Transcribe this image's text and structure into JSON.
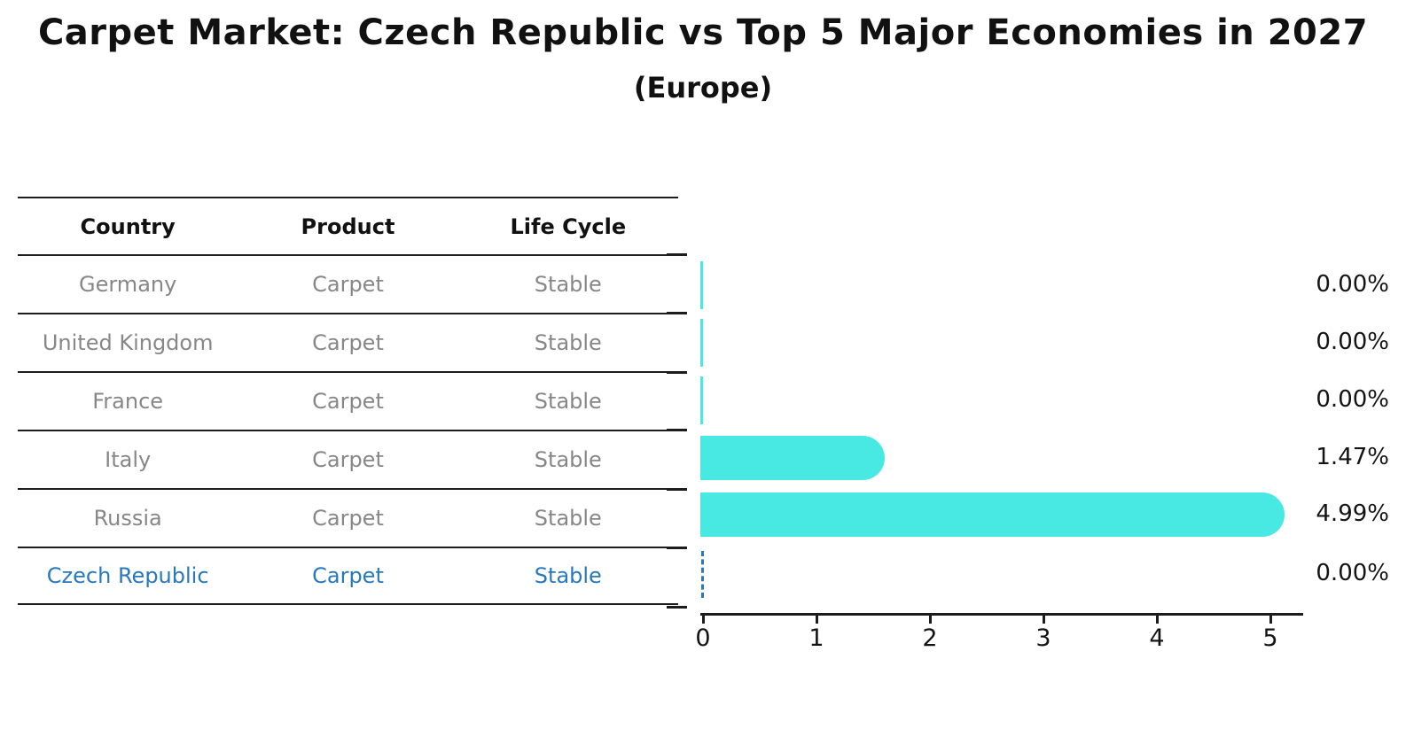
{
  "title": "Carpet Market: Czech Republic vs Top 5 Major Economies in 2027",
  "subtitle": "(Europe)",
  "table": {
    "headers": [
      "Country",
      "Product",
      "Life Cycle"
    ],
    "rows": [
      {
        "country": "Germany",
        "product": "Carpet",
        "life_cycle": "Stable",
        "highlight": false
      },
      {
        "country": "United Kingdom",
        "product": "Carpet",
        "life_cycle": "Stable",
        "highlight": false
      },
      {
        "country": "France",
        "product": "Carpet",
        "life_cycle": "Stable",
        "highlight": false
      },
      {
        "country": "Italy",
        "product": "Carpet",
        "life_cycle": "Stable",
        "highlight": false
      },
      {
        "country": "Russia",
        "product": "Carpet",
        "life_cycle": "Stable",
        "highlight": false
      },
      {
        "country": "Czech Republic",
        "product": "Carpet",
        "life_cycle": "Stable",
        "highlight": true
      }
    ]
  },
  "chart_data": {
    "type": "bar",
    "orientation": "horizontal",
    "title": "Carpet Market: Czech Republic vs Top 5 Major Economies in 2027",
    "subtitle": "(Europe)",
    "categories": [
      "Germany",
      "United Kingdom",
      "France",
      "Italy",
      "Russia",
      "Czech Republic"
    ],
    "values": [
      0.0,
      0.0,
      0.0,
      1.47,
      4.99,
      0.0
    ],
    "value_labels": [
      "0.00%",
      "0.00%",
      "0.00%",
      "1.47%",
      "4.99%",
      "0.00%"
    ],
    "highlight_index": 5,
    "x_tick_labels": [
      "0",
      "1",
      "2",
      "3",
      "4",
      "5"
    ],
    "x_ticks": [
      0,
      1,
      2,
      3,
      4,
      5
    ],
    "xlim": [
      0,
      5.3
    ],
    "grid": false,
    "legend": false
  },
  "colors": {
    "bar": "#48e8e3",
    "highlight": "#2878bd",
    "table_text": "#878787",
    "axis": "#1c1c1c",
    "label_text": "#141414"
  }
}
